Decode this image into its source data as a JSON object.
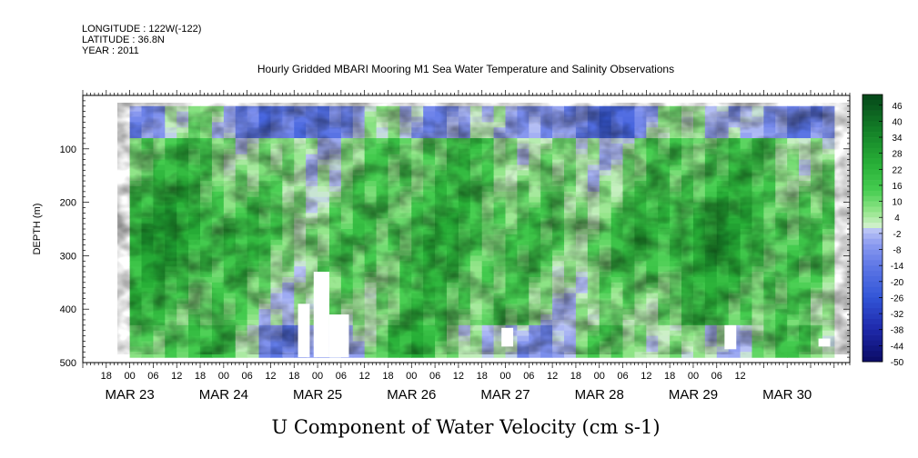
{
  "header": {
    "longitude": "LONGITUDE : 122W(-122)",
    "latitude": "LATITUDE : 36.8N",
    "year": "YEAR : 2011"
  },
  "chart_data": {
    "type": "heatmap",
    "title": "Hourly Gridded MBARI Mooring M1 Sea Water Temperature and Salinity Observations",
    "xlabel": "U Component of Water Velocity (cm s-1)",
    "ylabel": "DEPTH (m)",
    "x_range_hours": [
      "MAR 22 12:00",
      "MAR 30 16:00"
    ],
    "data_x_range_hours": [
      "MAR 23 00:00",
      "MAR 30 12:00"
    ],
    "y_range": [
      500,
      0
    ],
    "data_depth_range": [
      20,
      490
    ],
    "yticks": [
      100,
      200,
      300,
      400,
      500
    ],
    "yaxis_reversed": true,
    "xticks_hour_labels": [
      "18",
      "00",
      "06",
      "12",
      "18",
      "00",
      "06",
      "12",
      "18",
      "00",
      "06",
      "12",
      "18",
      "00",
      "06",
      "12",
      "18",
      "00",
      "06",
      "12",
      "18",
      "00",
      "06",
      "12",
      "18",
      "00",
      "06",
      "12"
    ],
    "xticks_date_labels": [
      "MAR 23",
      "MAR 24",
      "MAR 25",
      "MAR 26",
      "MAR 27",
      "MAR 28",
      "MAR 29",
      "MAR 30"
    ],
    "colorbar": {
      "range": [
        -50,
        50
      ],
      "step": 2,
      "labels": [
        "46",
        "40",
        "34",
        "28",
        "22",
        "16",
        "10",
        "4",
        "-2",
        "-8",
        "-14",
        "-20",
        "-26",
        "-32",
        "-38",
        "-44",
        "-50"
      ],
      "label_values": [
        46,
        40,
        34,
        28,
        22,
        16,
        10,
        4,
        -2,
        -8,
        -14,
        -20,
        -26,
        -32,
        -38,
        -44,
        -50
      ]
    },
    "colors": {
      "deep_negative": "#0a0a6e",
      "negative": "#2e4fd6",
      "near_zero_neg": "#a9b4f2",
      "near_zero_pos": "#c9f0bf",
      "positive": "#36c23a",
      "deep_positive": "#0b5a1a"
    }
  }
}
